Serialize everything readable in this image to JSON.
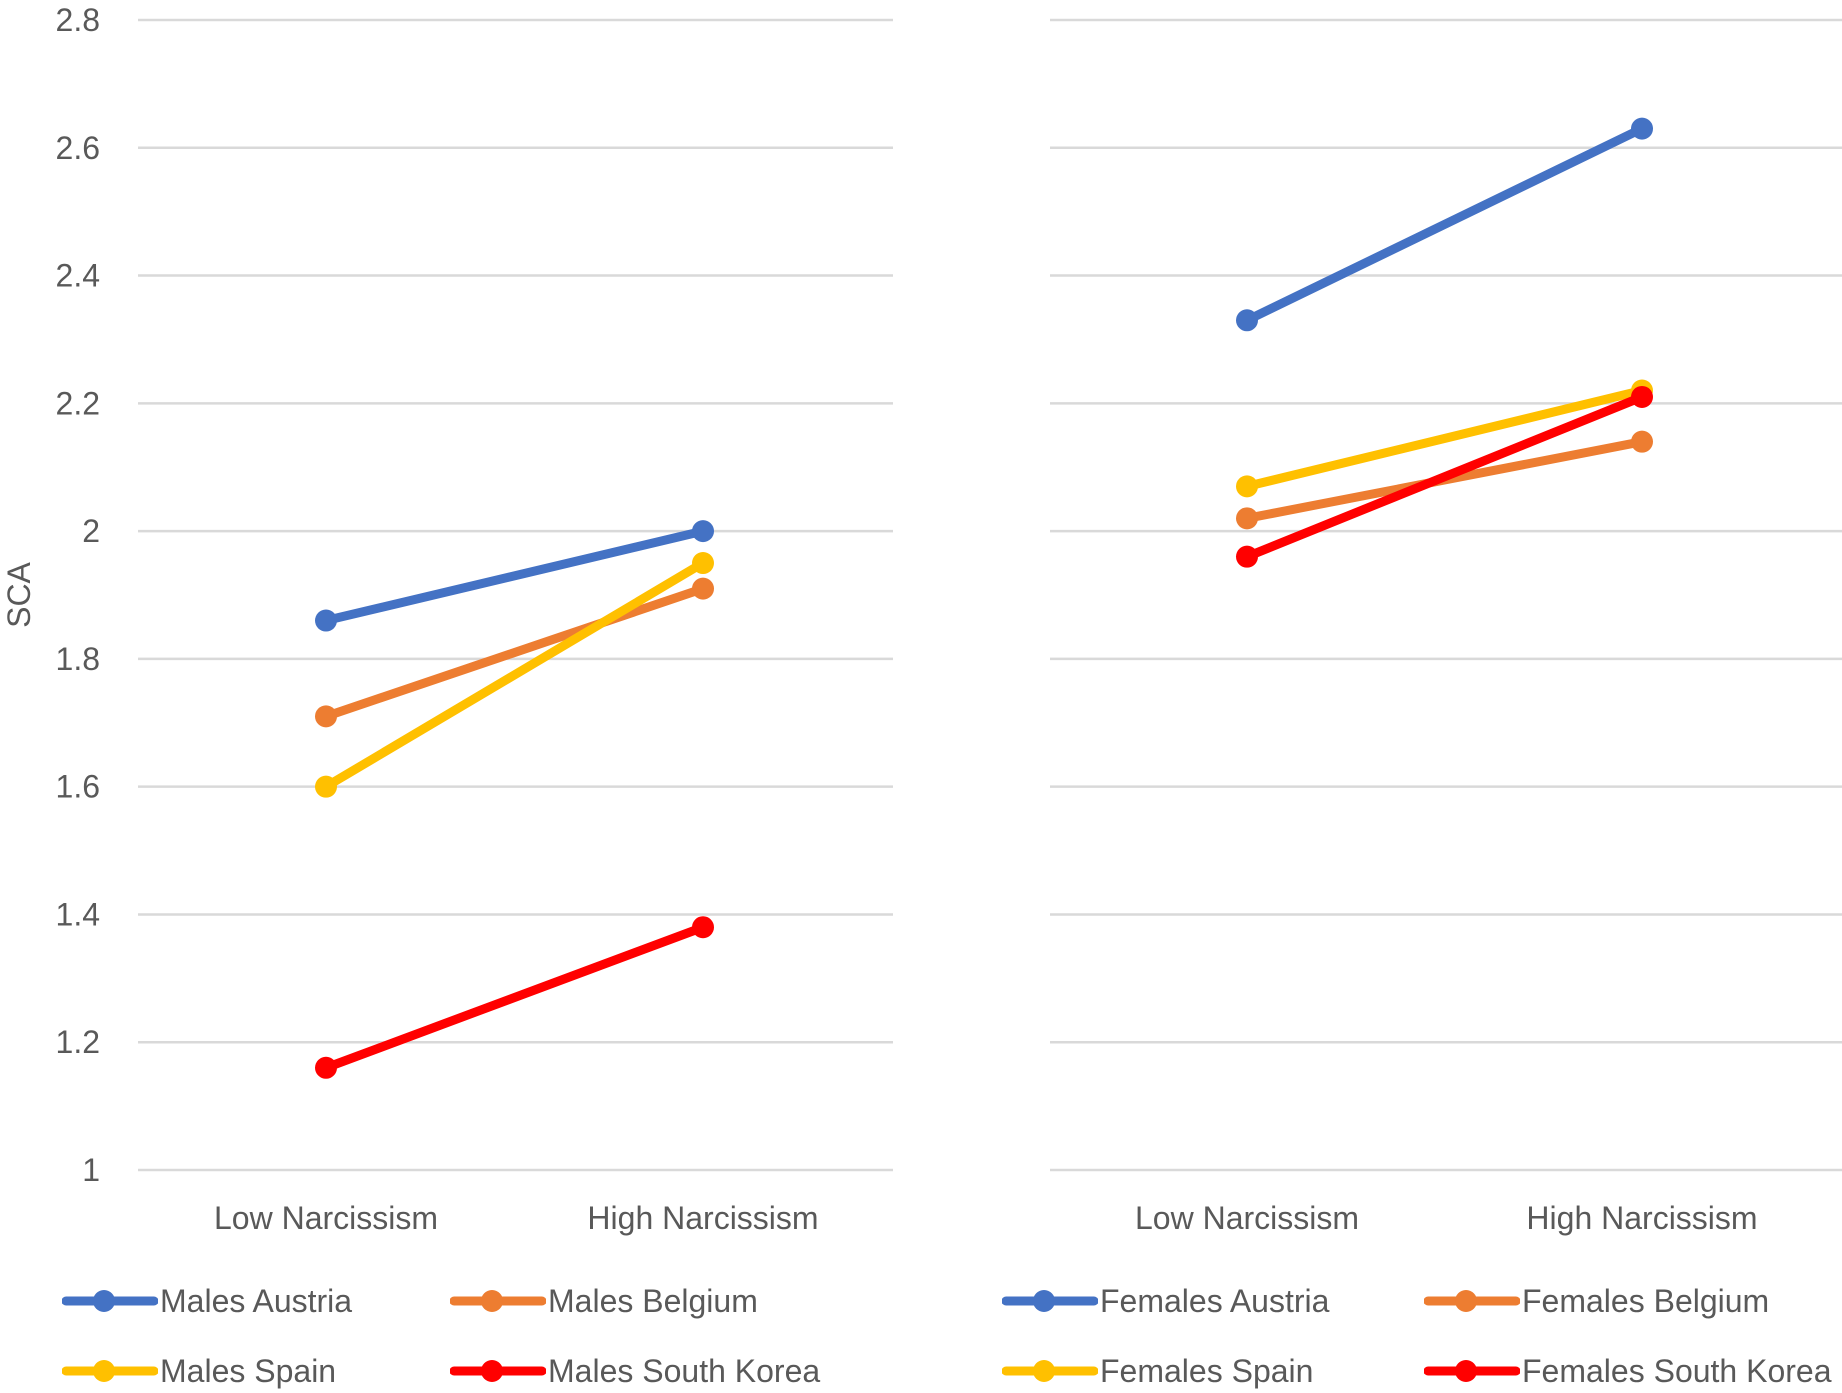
{
  "chart_data": {
    "type": "line",
    "ylabel": "SCA",
    "ylim": [
      1,
      2.8
    ],
    "yticks": [
      "1",
      "1.2",
      "1.4",
      "1.6",
      "1.8",
      "2",
      "2.2",
      "2.4",
      "2.6",
      "2.8"
    ],
    "grid": true,
    "legend_position": "bottom",
    "panels": [
      {
        "name": "Males",
        "categories": [
          "Low Narcissism",
          "High Narcissism"
        ],
        "series": [
          {
            "name": "Males Austria",
            "color": "#4472C4",
            "values": [
              1.86,
              2.0
            ]
          },
          {
            "name": "Males Belgium",
            "color": "#ED7D31",
            "values": [
              1.71,
              1.91
            ]
          },
          {
            "name": "Males Spain",
            "color": "#FFC000",
            "values": [
              1.6,
              1.95
            ]
          },
          {
            "name": "Males South Korea",
            "color": "#FF0000",
            "values": [
              1.16,
              1.38
            ]
          }
        ]
      },
      {
        "name": "Females",
        "categories": [
          "Low Narcissism",
          "High Narcissism"
        ],
        "series": [
          {
            "name": "Females Austria",
            "color": "#4472C4",
            "values": [
              2.33,
              2.63
            ]
          },
          {
            "name": "Females Belgium",
            "color": "#ED7D31",
            "values": [
              2.02,
              2.14
            ]
          },
          {
            "name": "Females Spain",
            "color": "#FFC000",
            "values": [
              2.07,
              2.22
            ]
          },
          {
            "name": "Females South Korea",
            "color": "#FF0000",
            "values": [
              1.96,
              2.21
            ]
          }
        ]
      }
    ]
  }
}
